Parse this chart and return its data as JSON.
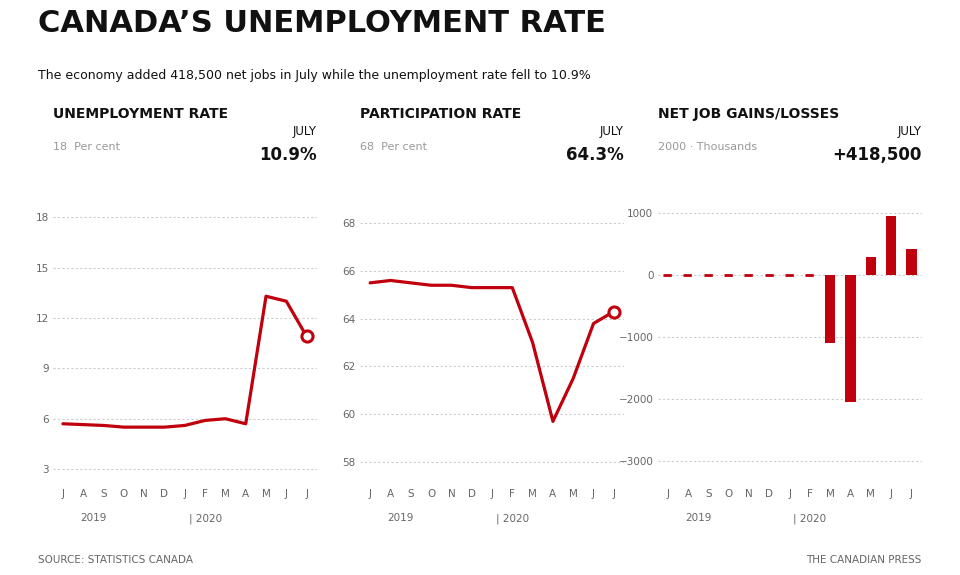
{
  "title": "CANADA’S UNEMPLOYMENT RATE",
  "subtitle": "The economy added 418,500 net jobs in July while the unemployment rate fell to 10.9%",
  "source_left": "SOURCE: STATISTICS CANADA",
  "source_right": "THE CANADIAN PRESS",
  "months_labels": [
    "J",
    "A",
    "S",
    "O",
    "N",
    "D",
    "J",
    "F",
    "M",
    "A",
    "M",
    "J",
    "J"
  ],
  "unemp_title": "UNEMPLOYMENT RATE",
  "unemp_unit": "18  Per cent",
  "unemp_july_label": "JULY",
  "unemp_july_value": "10.9%",
  "unemp_yticks": [
    3,
    6,
    9,
    12,
    15,
    18
  ],
  "unemp_ylim": [
    2.0,
    20.5
  ],
  "unemp_data": [
    5.7,
    5.65,
    5.6,
    5.5,
    5.5,
    5.5,
    5.6,
    5.9,
    6.0,
    5.7,
    13.3,
    13.0,
    10.9
  ],
  "part_title": "PARTICIPATION RATE",
  "part_unit": "68  Per cent",
  "part_july_label": "JULY",
  "part_july_value": "64.3%",
  "part_yticks": [
    58,
    60,
    62,
    64,
    66,
    68
  ],
  "part_ylim": [
    57.0,
    70.0
  ],
  "part_data": [
    65.5,
    65.6,
    65.5,
    65.4,
    65.4,
    65.3,
    65.3,
    65.3,
    63.0,
    59.7,
    61.5,
    63.8,
    64.3
  ],
  "jobs_title": "NET JOB GAINS/LOSSES",
  "jobs_unit": "2000 · Thousands",
  "jobs_july_label": "JULY",
  "jobs_july_value": "+418,500",
  "jobs_yticks": [
    -3000,
    -2000,
    -1000,
    0,
    1000
  ],
  "jobs_ylim": [
    -3400,
    1600
  ],
  "jobs_data": [
    15,
    -20,
    -5,
    15,
    10,
    -15,
    -15,
    -50,
    -1100,
    -2050,
    290,
    950,
    419
  ],
  "jobs_small_threshold": 100,
  "line_color": "#c0000c",
  "dotted_color": "#cccccc",
  "text_dark": "#111111",
  "text_gray": "#999999",
  "text_mid": "#666666",
  "bg": "#ffffff",
  "title_fontsize": 22,
  "subtitle_fontsize": 9,
  "chart_title_fontsize": 10,
  "unit_fontsize": 8,
  "july_label_fontsize": 8.5,
  "july_value_fontsize": 12,
  "tick_fontsize": 7.5,
  "footer_fontsize": 7.5
}
